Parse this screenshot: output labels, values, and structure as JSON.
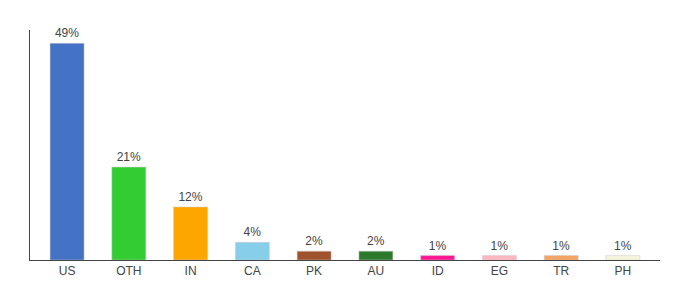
{
  "chart_data": {
    "type": "bar",
    "categories": [
      "US",
      "OTH",
      "IN",
      "CA",
      "PK",
      "AU",
      "ID",
      "EG",
      "TR",
      "PH"
    ],
    "values": [
      49,
      21,
      12,
      4,
      2,
      2,
      1,
      1,
      1,
      1
    ],
    "value_labels": [
      "49%",
      "21%",
      "12%",
      "4%",
      "2%",
      "2%",
      "1%",
      "1%",
      "1%",
      "1%"
    ],
    "colors": [
      "#4472c4",
      "#33cc33",
      "#ffa500",
      "#87ceeb",
      "#a0522d",
      "#2d7a2d",
      "#ff1493",
      "#ffb6c1",
      "#f4a460",
      "#f5f5dc"
    ],
    "ylim": [
      0,
      52
    ],
    "grid": false,
    "data_labels": true,
    "tick_labels": "x"
  }
}
